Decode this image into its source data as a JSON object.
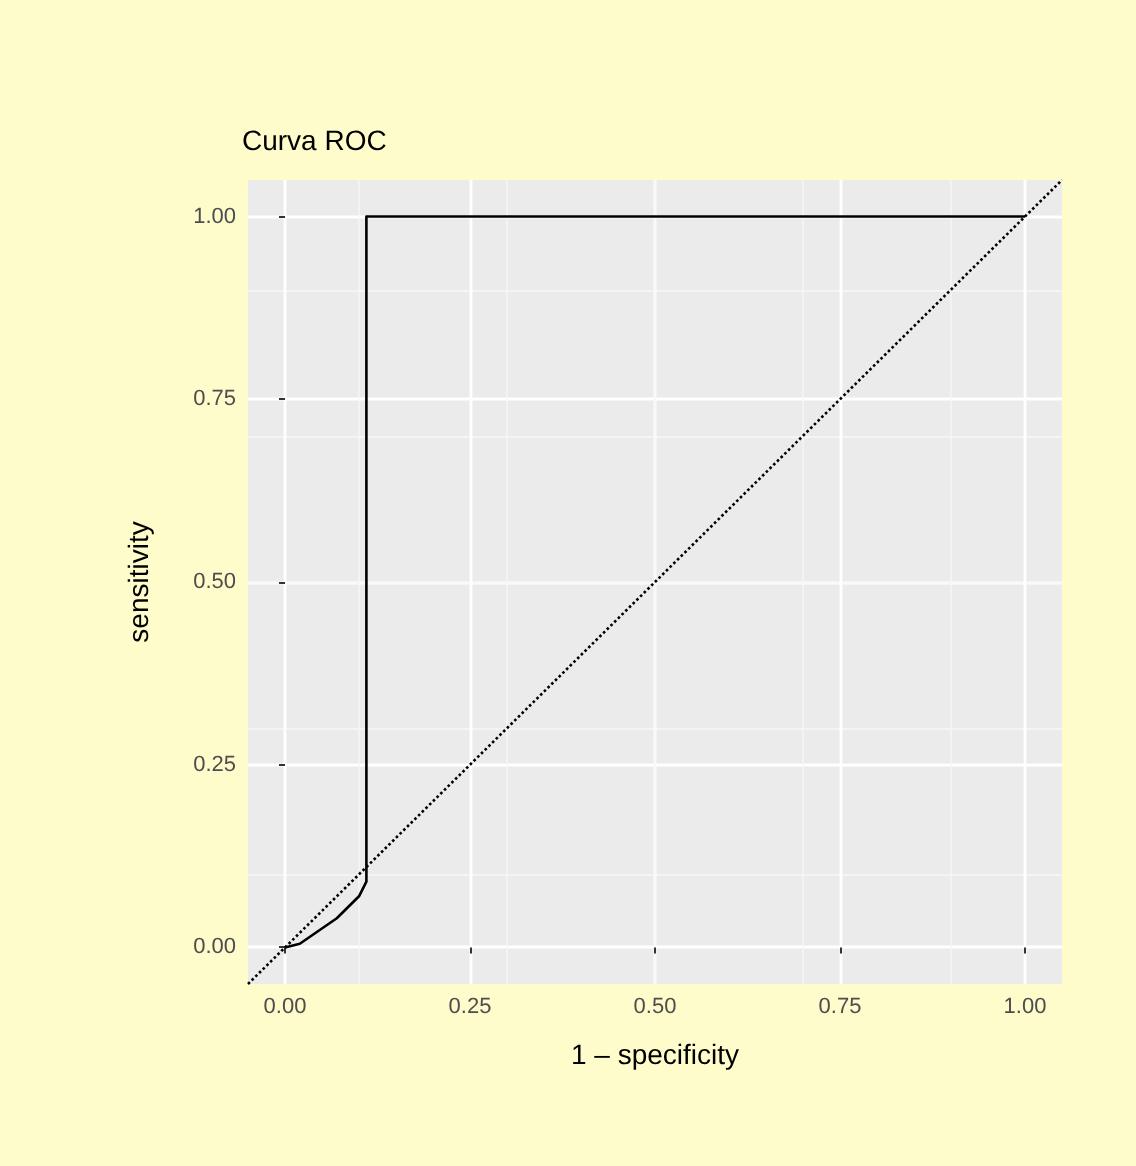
{
  "chart_data": {
    "type": "line",
    "title": "Curva ROC",
    "xlabel": "1 – specificity",
    "ylabel": "sensitivity",
    "xlim": [
      -0.05,
      1.05
    ],
    "ylim": [
      -0.05,
      1.05
    ],
    "xticks": [
      {
        "value": 0,
        "label": "0.00"
      },
      {
        "value": 0.25,
        "label": "0.25"
      },
      {
        "value": 0.5,
        "label": "0.50"
      },
      {
        "value": 0.75,
        "label": "0.75"
      },
      {
        "value": 1,
        "label": "1.00"
      }
    ],
    "yticks": [
      {
        "value": 0,
        "label": "0.00"
      },
      {
        "value": 0.25,
        "label": "0.25"
      },
      {
        "value": 0.5,
        "label": "0.50"
      },
      {
        "value": 0.75,
        "label": "0.75"
      },
      {
        "value": 1,
        "label": "1.00"
      }
    ],
    "grid": true,
    "marker": "none",
    "series": [
      {
        "color": "#000000",
        "line_style": "solid",
        "x": [
          0,
          0.02,
          0.07,
          0.1,
          0.11,
          0.11,
          1
        ],
        "values": [
          0,
          0.005,
          0.04,
          0.07,
          0.09,
          1,
          1
        ]
      },
      {
        "color": "#000000",
        "line_style": "dotted",
        "x": [
          -0.05,
          1.05
        ],
        "values": [
          -0.05,
          1.05
        ]
      }
    ]
  }
}
